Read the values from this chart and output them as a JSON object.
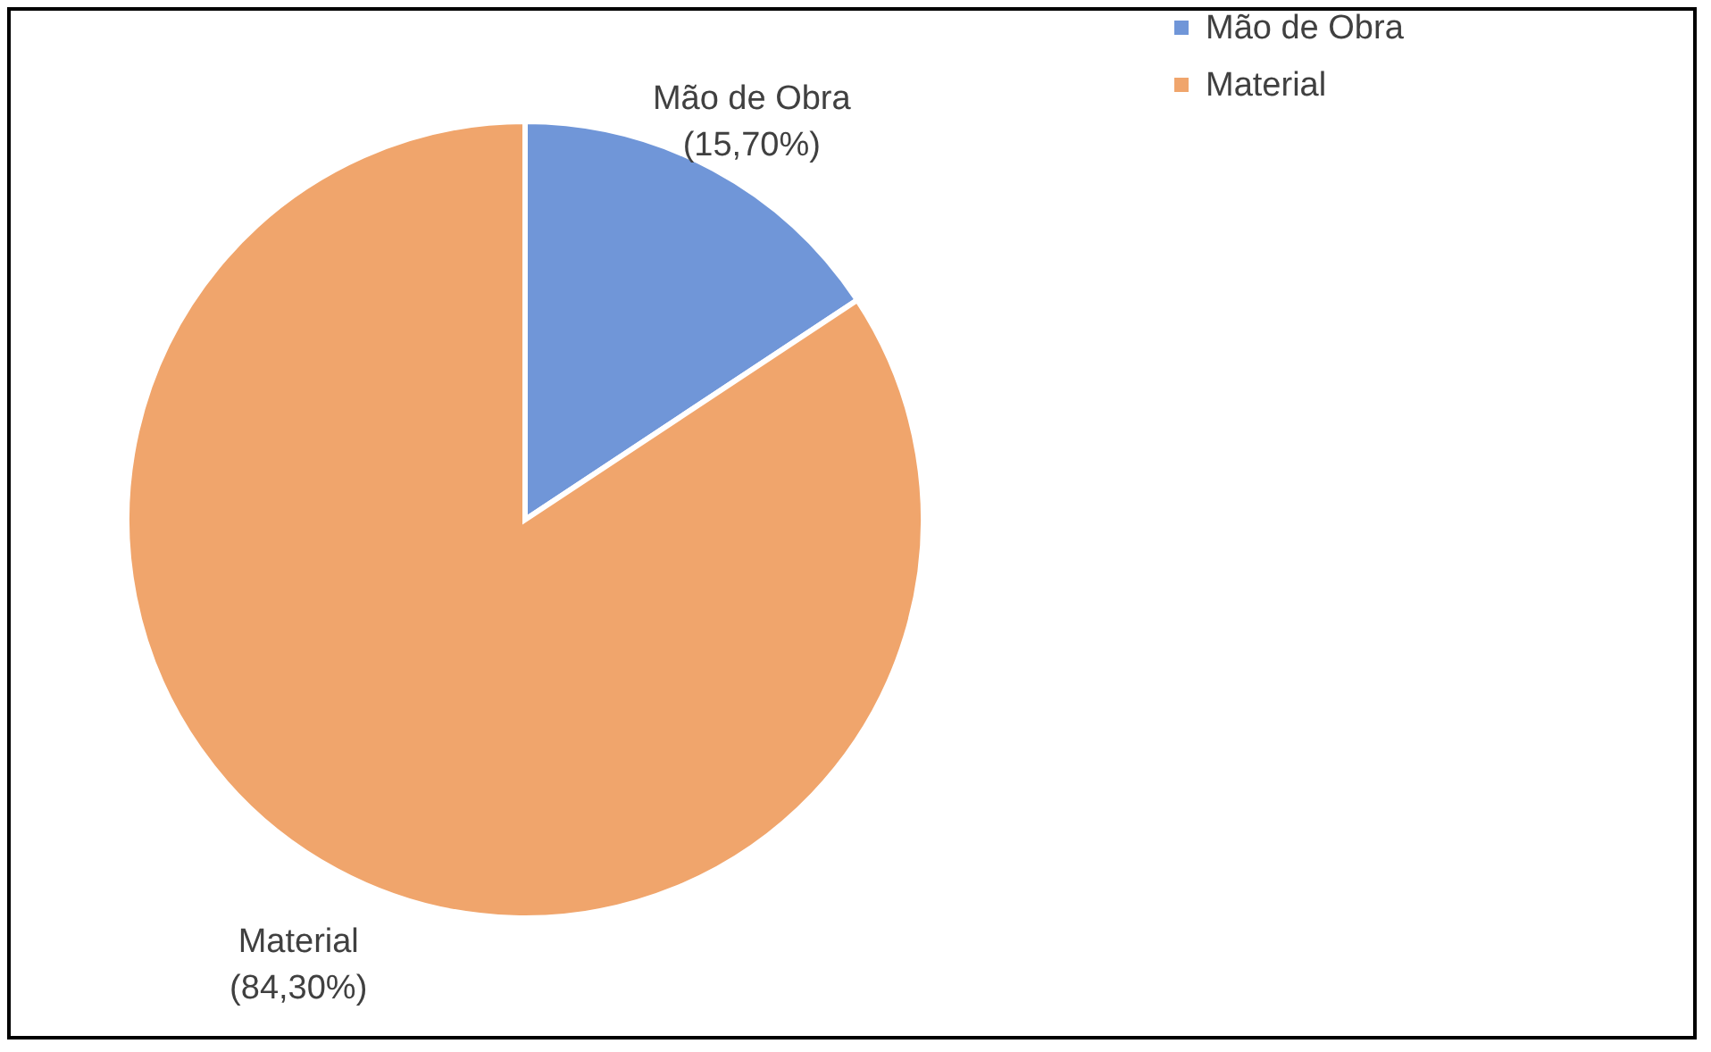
{
  "chart_data": {
    "type": "pie",
    "categories": [
      "Mão de Obra",
      "Material"
    ],
    "values": [
      15.7,
      84.3
    ],
    "colors": [
      "#7096d8",
      "#f0a56c"
    ],
    "value_labels": [
      "(15,70%)",
      "(84,30%)"
    ],
    "legend": "right"
  }
}
